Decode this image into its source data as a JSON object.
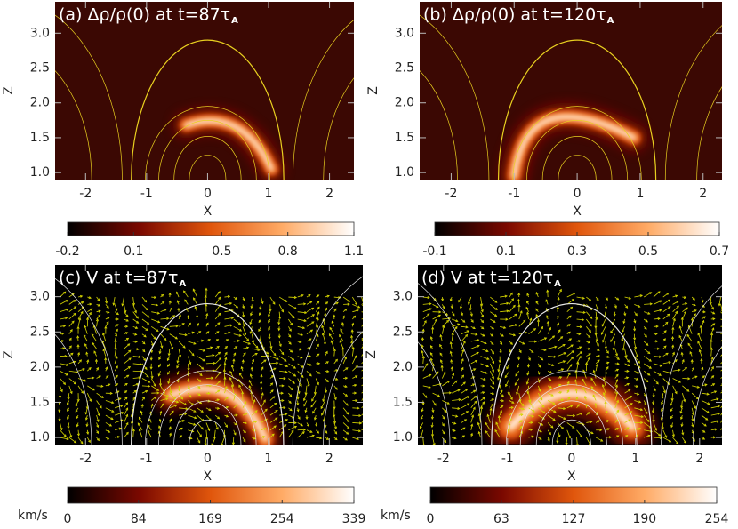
{
  "chart_data": [
    {
      "type": "heatmap",
      "title": "(a) Δρ/ρ(0) at t=87τ",
      "title_subscript": "A",
      "xlabel": "X",
      "ylabel": "Z",
      "xlim": [
        -2.5,
        2.4
      ],
      "ylim": [
        0.9,
        3.45
      ],
      "xticks": [
        -2,
        -1,
        0,
        1,
        2
      ],
      "yticks": [
        {
          "value": 1,
          "label": "1.0"
        },
        1.5,
        {
          "value": 2,
          "label": "2.0"
        },
        2.5,
        {
          "value": 3,
          "label": "3.0"
        }
      ],
      "colormap": [
        "#000000",
        "#7a0800",
        "#e0560c",
        "#ffab66",
        "#ffffff"
      ],
      "colorbar": {
        "lim": [
          -0.2,
          1.1
        ],
        "ticks": [
          -0.2,
          0.1,
          0.5,
          0.8,
          1.1
        ]
      }
    },
    {
      "type": "heatmap",
      "title": "(b) Δρ/ρ(0) at t=120τ",
      "title_subscript": "A",
      "xlabel": "X",
      "ylabel": "Z",
      "xlim": [
        -2.5,
        2.3
      ],
      "ylim": [
        0.9,
        3.45
      ],
      "xticks": [
        -2,
        -1,
        0,
        1,
        2
      ],
      "yticks": [
        {
          "value": 1,
          "label": "1.0"
        },
        1.5,
        {
          "value": 2,
          "label": "2.0"
        },
        2.5,
        {
          "value": 3,
          "label": "3.0"
        }
      ],
      "colormap": [
        "#000000",
        "#7a0800",
        "#e0560c",
        "#ffab66",
        "#ffffff"
      ],
      "colorbar": {
        "lim": [
          -0.1,
          0.7
        ],
        "ticks": [
          -0.1,
          0.1,
          0.3,
          0.5,
          0.7
        ]
      }
    },
    {
      "type": "heatmap",
      "title": "(c) V at t=87τ",
      "title_subscript": "A",
      "xlabel": "X",
      "ylabel": "Z",
      "xlim": [
        -2.5,
        2.55
      ],
      "ylim": [
        0.9,
        3.45
      ],
      "xticks": [
        -2,
        -1,
        0,
        1,
        2
      ],
      "yticks": [
        {
          "value": 1,
          "label": "1.0"
        },
        1.5,
        {
          "value": 2,
          "label": "2.0"
        },
        2.5,
        {
          "value": 3,
          "label": "3.0"
        }
      ],
      "colormap": [
        "#000000",
        "#7a0800",
        "#e0560c",
        "#ffab66",
        "#ffffff"
      ],
      "colorbar": {
        "label": "km/s",
        "lim": [
          0,
          339
        ],
        "ticks": [
          0,
          84,
          169,
          254,
          339
        ]
      }
    },
    {
      "type": "heatmap",
      "title": "(d) V at t=120τ",
      "title_subscript": "A",
      "xlabel": "X",
      "ylabel": "Z",
      "xlim": [
        -2.4,
        2.35
      ],
      "ylim": [
        0.9,
        3.45
      ],
      "xticks": [
        -2,
        -1,
        0,
        1,
        2
      ],
      "yticks": [
        {
          "value": 1,
          "label": "1.0"
        },
        1.5,
        {
          "value": 2,
          "label": "2.0"
        },
        2.5,
        {
          "value": 3,
          "label": "3.0"
        }
      ],
      "colormap": [
        "#000000",
        "#7a0800",
        "#e0560c",
        "#ffab66",
        "#ffffff"
      ],
      "colorbar": {
        "label": "km/s",
        "lim": [
          0,
          254
        ],
        "ticks": [
          0,
          63,
          127,
          190,
          254
        ]
      }
    }
  ]
}
